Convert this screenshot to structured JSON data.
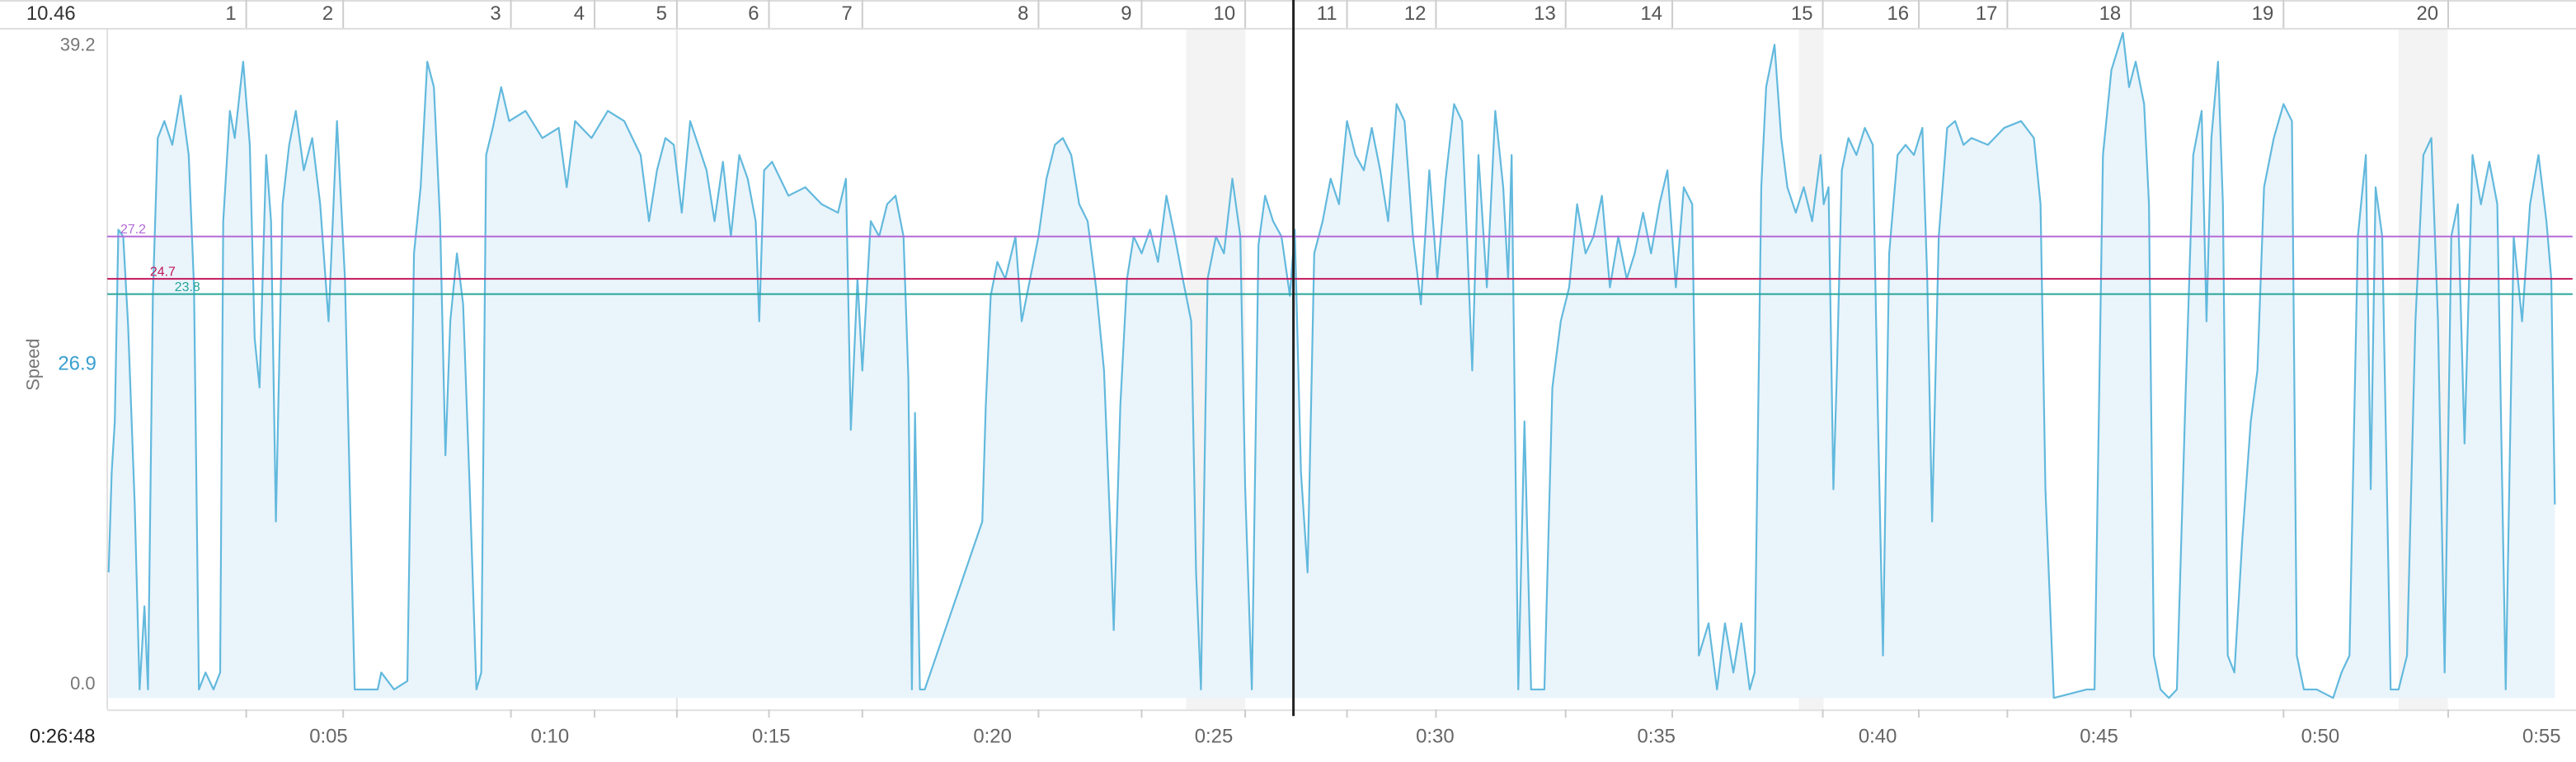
{
  "chart_data": {
    "type": "line",
    "y_label": "Speed",
    "distance": 10.46,
    "color": "#62b9dd",
    "fill_color": "#eaf4fb",
    "xlim": [
      0,
      55.7
    ],
    "ylim": [
      0,
      39.2
    ],
    "yticks": [
      {
        "value": 0,
        "label": "0.0"
      },
      39.2
    ],
    "xticks": [
      {
        "value": 5,
        "label": "0:05"
      },
      {
        "value": 10,
        "label": "0:10"
      },
      {
        "value": 15,
        "label": "0:15"
      },
      {
        "value": 20,
        "label": "0:20"
      },
      {
        "value": 25,
        "label": "0:25"
      },
      {
        "value": 30,
        "label": "0:30"
      },
      {
        "value": 35,
        "label": "0:35"
      },
      {
        "value": 40,
        "label": "0:40"
      },
      {
        "value": 45,
        "label": "0:45"
      },
      {
        "value": 50,
        "label": "0:50"
      },
      {
        "value": 55,
        "label": "0:55"
      }
    ],
    "grid": false,
    "cursor": {
      "time": 26.8,
      "time_label": "0:26:48",
      "speed": 26.9,
      "color": "#222",
      "speed_color": "#3a9fd0"
    },
    "reference_lines": [
      {
        "value": 27.2,
        "color": "#b36bd6"
      },
      {
        "value": 24.7,
        "color": "#c2185b"
      },
      {
        "value": 23.8,
        "color": "#26a69a"
      }
    ],
    "laps": {
      "numbers": [
        1,
        2,
        3,
        4,
        5,
        6,
        7,
        8,
        9,
        10,
        11,
        12,
        13,
        14,
        15,
        16,
        17,
        18,
        19,
        20
      ],
      "ends": [
        3.14,
        5.33,
        9.12,
        11.01,
        12.87,
        14.95,
        17.06,
        21.04,
        23.37,
        25.71,
        28.01,
        30.02,
        32.95,
        35.36,
        38.76,
        40.93,
        42.93,
        45.72,
        49.17,
        52.89
      ]
    },
    "x": [
      0.03,
      0.1,
      0.17,
      0.25,
      0.36,
      0.47,
      0.62,
      0.73,
      0.84,
      0.92,
      1.03,
      1.14,
      1.29,
      1.47,
      1.66,
      1.84,
      1.96,
      2.07,
      2.22,
      2.4,
      2.55,
      2.62,
      2.77,
      2.88,
      3.07,
      3.22,
      3.33,
      3.44,
      3.59,
      3.7,
      3.81,
      3.96,
      4.11,
      4.26,
      4.44,
      4.63,
      4.81,
      5.0,
      5.19,
      5.37,
      5.48,
      5.59,
      6.11,
      6.19,
      6.48,
      6.78,
      6.93,
      7.08,
      7.23,
      7.38,
      7.52,
      7.64,
      7.75,
      7.9,
      8.04,
      8.19,
      8.34,
      8.45,
      8.56,
      8.71,
      8.9,
      9.08,
      9.45,
      9.83,
      10.2,
      10.38,
      10.57,
      10.94,
      11.31,
      11.68,
      12.05,
      12.24,
      12.42,
      12.61,
      12.8,
      12.98,
      13.17,
      13.35,
      13.54,
      13.72,
      13.91,
      14.09,
      14.28,
      14.47,
      14.65,
      14.73,
      14.84,
      15.02,
      15.39,
      15.77,
      16.14,
      16.51,
      16.69,
      16.8,
      16.95,
      17.06,
      17.25,
      17.44,
      17.62,
      17.81,
      17.99,
      18.1,
      18.18,
      18.25,
      18.36,
      18.47,
      19.77,
      19.85,
      19.96,
      20.11,
      20.29,
      20.52,
      20.66,
      20.85,
      21.04,
      21.22,
      21.41,
      21.59,
      21.78,
      21.96,
      22.15,
      22.34,
      22.52,
      22.67,
      22.74,
      22.89,
      23.04,
      23.19,
      23.37,
      23.56,
      23.74,
      23.93,
      24.12,
      24.3,
      24.49,
      24.6,
      24.71,
      24.86,
      25.05,
      25.23,
      25.42,
      25.6,
      25.71,
      25.86,
      26.01,
      26.16,
      26.34,
      26.53,
      26.72,
      26.83,
      26.97,
      27.12,
      27.27,
      27.46,
      27.64,
      27.83,
      28.01,
      28.2,
      28.39,
      28.57,
      28.76,
      28.94,
      29.13,
      29.31,
      29.5,
      29.68,
      29.87,
      30.05,
      30.24,
      30.43,
      30.61,
      30.72,
      30.84,
      30.98,
      31.17,
      31.36,
      31.54,
      31.65,
      31.73,
      31.88,
      32.02,
      32.17,
      32.47,
      32.65,
      32.84,
      33.03,
      33.21,
      33.4,
      33.58,
      33.77,
      33.95,
      34.14,
      34.33,
      34.51,
      34.7,
      34.88,
      35.07,
      35.25,
      35.44,
      35.62,
      35.81,
      35.96,
      36.18,
      36.37,
      36.55,
      36.74,
      36.92,
      37.11,
      37.22,
      37.37,
      37.48,
      37.67,
      37.82,
      37.96,
      38.15,
      38.33,
      38.52,
      38.71,
      38.78,
      38.89,
      39.0,
      39.08,
      39.19,
      39.34,
      39.52,
      39.71,
      39.89,
      40.0,
      40.12,
      40.26,
      40.45,
      40.63,
      40.82,
      41.01,
      41.12,
      41.23,
      41.38,
      41.57,
      41.75,
      41.94,
      42.12,
      42.49,
      42.86,
      43.24,
      43.53,
      43.68,
      43.79,
      43.98,
      44.72,
      44.9,
      45.09,
      45.28,
      45.54,
      45.68,
      45.83,
      46.02,
      46.13,
      46.24,
      46.39,
      46.58,
      46.76,
      46.95,
      47.13,
      47.32,
      47.43,
      47.54,
      47.69,
      47.8,
      47.91,
      48.06,
      48.24,
      48.43,
      48.58,
      48.73,
      48.95,
      49.17,
      49.36,
      49.47,
      49.63,
      49.92,
      50.29,
      50.48,
      50.66,
      50.85,
      51.03,
      51.14,
      51.25,
      51.4,
      51.59,
      51.77,
      51.96,
      52.15,
      52.33,
      52.51,
      52.66,
      52.81,
      52.96,
      53.11,
      53.26,
      53.44,
      53.63,
      53.82,
      54.0,
      54.19,
      54.37,
      54.56,
      54.74,
      54.93,
      55.11,
      55.22,
      55.3
    ],
    "values": [
      7.4,
      13.3,
      16.3,
      27.6,
      27.2,
      22,
      11.4,
      0.5,
      5.4,
      0.5,
      23.7,
      33,
      34,
      32.6,
      35.5,
      32,
      24.2,
      0.5,
      1.5,
      0.5,
      1.5,
      28.1,
      34.6,
      33,
      37.5,
      32.6,
      21.2,
      18.3,
      32,
      28.1,
      10.4,
      29.1,
      32.6,
      34.6,
      31.1,
      33,
      29.1,
      22.2,
      34,
      24.7,
      12.3,
      0.5,
      0.5,
      1.5,
      0.5,
      1,
      26.2,
      30.1,
      37.5,
      36,
      28.1,
      14.3,
      22.2,
      26.2,
      23.2,
      12.3,
      0.5,
      1.5,
      32,
      33.6,
      36,
      34,
      34.6,
      33,
      33.6,
      30.1,
      34,
      33,
      34.6,
      34,
      32,
      28.1,
      31.1,
      33,
      32.6,
      28.6,
      34,
      32.6,
      31.1,
      28.1,
      31.6,
      27.2,
      32,
      30.6,
      28.1,
      22.2,
      31.1,
      31.6,
      29.6,
      30.1,
      29.1,
      28.6,
      30.6,
      15.8,
      24.7,
      19.3,
      28.1,
      27.2,
      29.1,
      29.6,
      27.2,
      18.8,
      0.5,
      16.8,
      0.5,
      0.5,
      10.4,
      17.3,
      23.7,
      25.7,
      24.7,
      27.2,
      22.2,
      24.7,
      27.2,
      30.6,
      32.6,
      33,
      32,
      29.1,
      28.1,
      24.2,
      19.3,
      9.4,
      4,
      17.3,
      24.7,
      27.2,
      26.2,
      27.6,
      25.7,
      29.6,
      27.2,
      24.7,
      22.2,
      7.4,
      0.5,
      24.7,
      27.2,
      26.2,
      30.6,
      27.2,
      12.3,
      0.5,
      26.7,
      29.6,
      28.1,
      27.2,
      23.7,
      27.6,
      13.3,
      7.4,
      26.2,
      28.1,
      30.6,
      29.1,
      34,
      32,
      31.1,
      33.6,
      31.1,
      28.1,
      35,
      34,
      27.2,
      23.2,
      31.1,
      24.7,
      30.6,
      35,
      34,
      27.2,
      19.3,
      32,
      24.2,
      34.6,
      30.1,
      24.7,
      32,
      0.5,
      16.3,
      0.5,
      0.5,
      18.3,
      22.2,
      24.2,
      29.1,
      26.2,
      27.2,
      29.6,
      24.2,
      27.2,
      24.7,
      26.2,
      28.6,
      26.2,
      29.1,
      31.1,
      24.2,
      30.1,
      29.1,
      2.5,
      4.4,
      0.5,
      4.4,
      1.5,
      4.4,
      0.5,
      1.5,
      30.1,
      36,
      38.5,
      33,
      30.1,
      28.6,
      30.1,
      28.1,
      32,
      29.1,
      30.1,
      12.3,
      19.3,
      31.1,
      33,
      32,
      33.6,
      32.6,
      17.3,
      2.5,
      26.2,
      32,
      32.6,
      32,
      33.6,
      24.7,
      10.4,
      27.2,
      33.6,
      34,
      32.6,
      33,
      32.6,
      33.6,
      34,
      33,
      29.1,
      12.3,
      0,
      0.5,
      0.5,
      32,
      37,
      39.2,
      36,
      37.5,
      35,
      29.1,
      2.5,
      0.5,
      0,
      0.5,
      17.3,
      32,
      34.6,
      22.2,
      33,
      37.5,
      29.1,
      2.5,
      1.5,
      9.4,
      16.3,
      19.3,
      30.1,
      33,
      35,
      34,
      2.5,
      0.5,
      0.5,
      0,
      1.5,
      2.5,
      27.2,
      32,
      12.3,
      30.1,
      27.2,
      0.5,
      0.5,
      2.5,
      22.2,
      32,
      33,
      22.2,
      1.5,
      27.2,
      29.1,
      15,
      32,
      29.1,
      31.6,
      29.1,
      0.5,
      27.2,
      22.2,
      29.1,
      32,
      28.1,
      24.7,
      11.4
    ]
  }
}
